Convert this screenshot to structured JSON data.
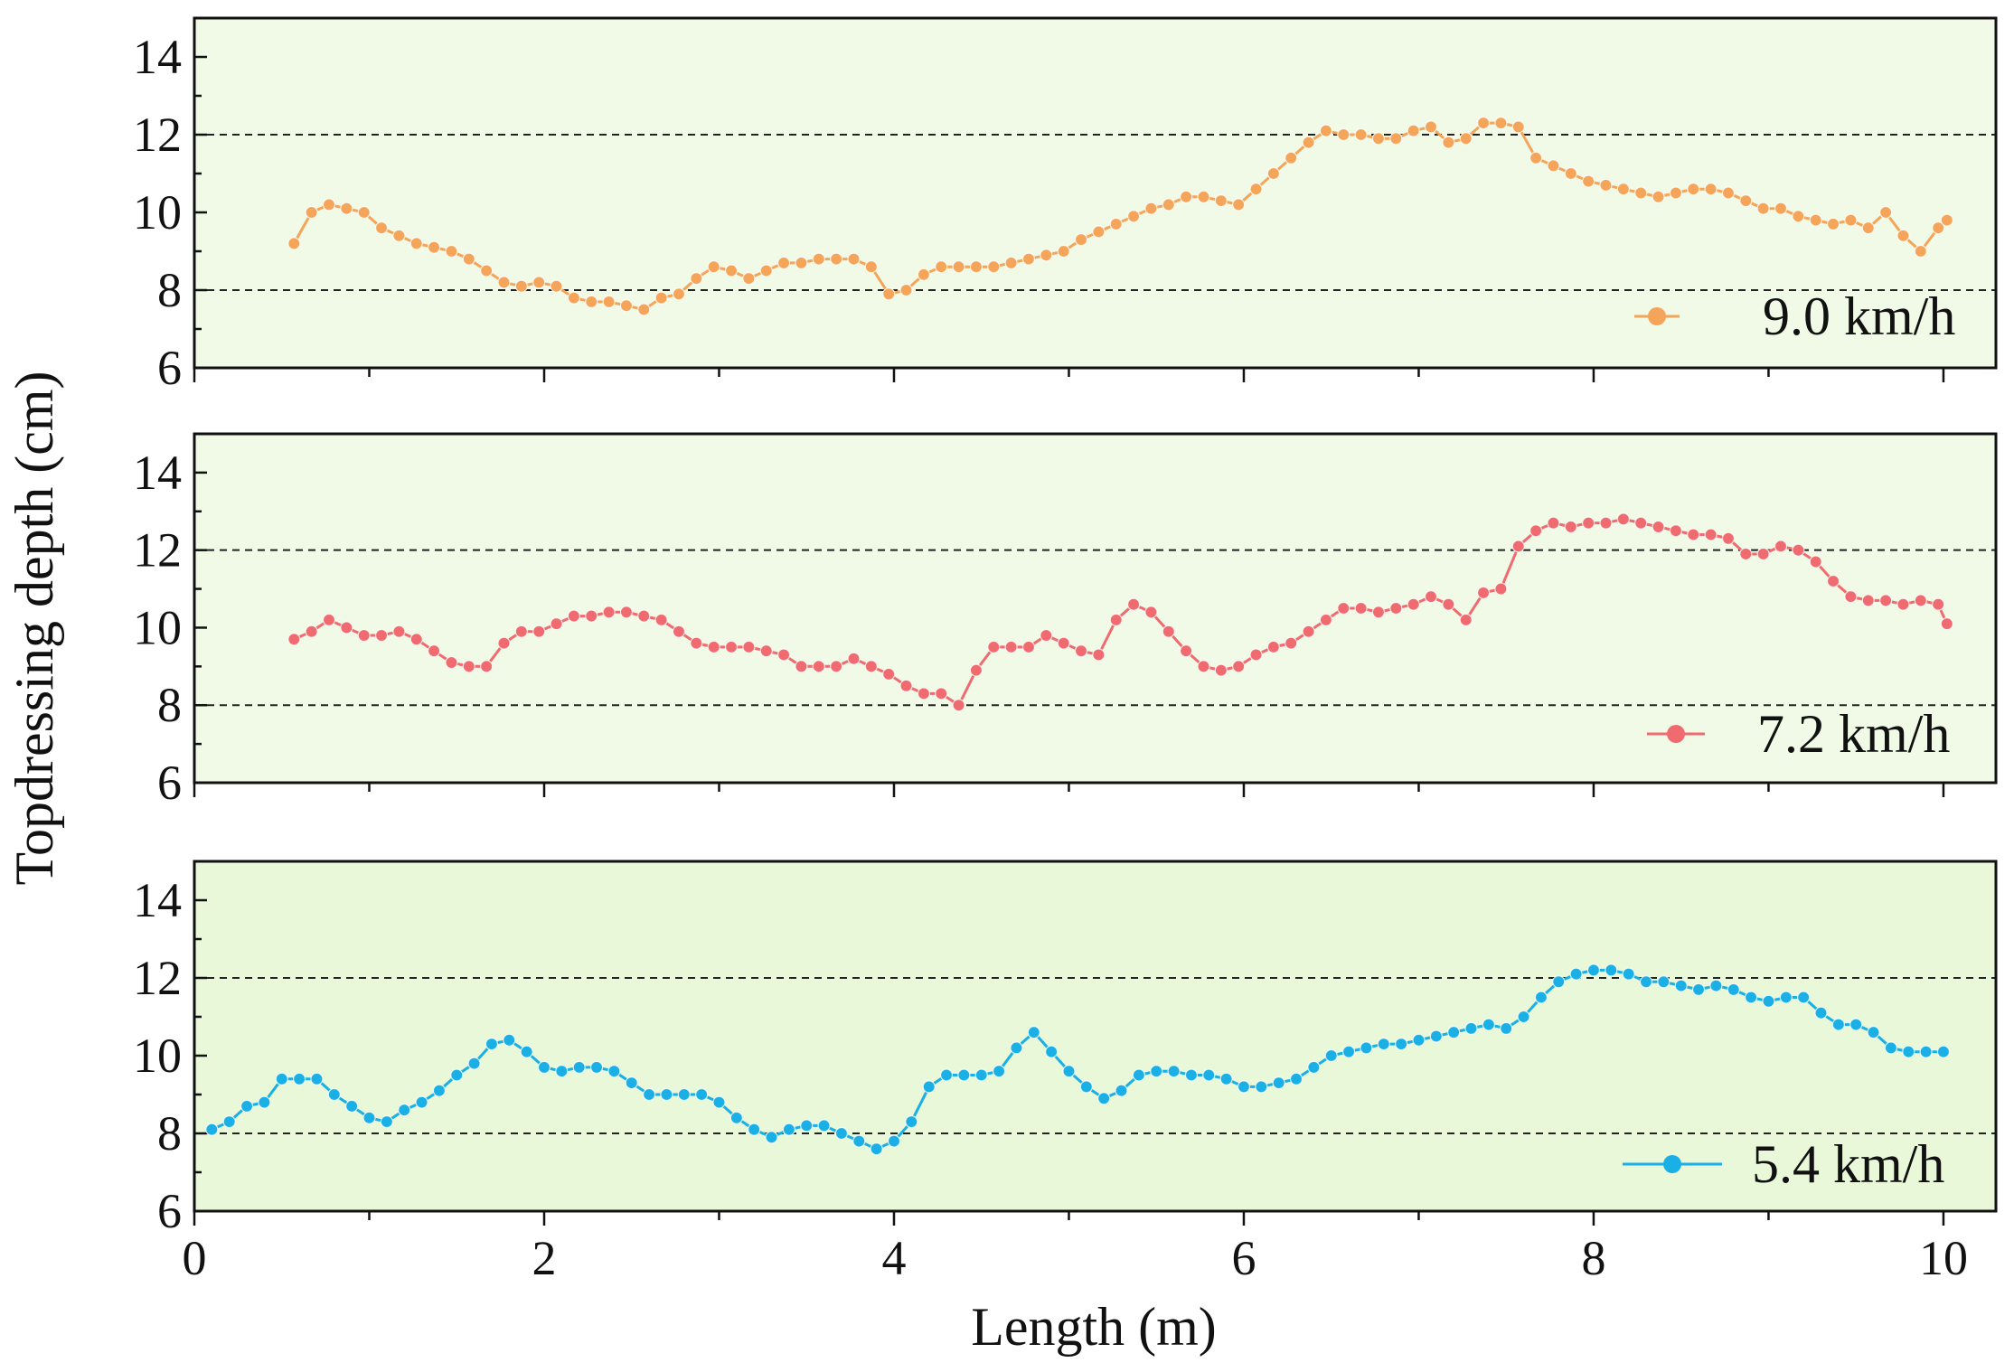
{
  "chart_data": {
    "type": "line",
    "layout": "stacked-panels",
    "xlabel": "Length (m)",
    "ylabel": "Topdressing depth (cm)",
    "xlim": [
      0,
      10.3
    ],
    "x_ticks": [
      0,
      2,
      4,
      6,
      8,
      10
    ],
    "ylim": [
      6,
      15
    ],
    "y_ticks": [
      6,
      8,
      10,
      12,
      14
    ],
    "reference_lines": [
      8,
      12
    ],
    "grid": false,
    "legend_position": "bottom-right",
    "panels": [
      {
        "series": {
          "name": "9.0 km/h",
          "color": "#f5a55a",
          "marker": "circle",
          "x": [
            0.57,
            0.67,
            0.77,
            0.87,
            0.97,
            1.07,
            1.17,
            1.27,
            1.37,
            1.47,
            1.57,
            1.67,
            1.77,
            1.87,
            1.97,
            2.07,
            2.17,
            2.27,
            2.37,
            2.47,
            2.57,
            2.67,
            2.77,
            2.87,
            2.97,
            3.07,
            3.17,
            3.27,
            3.37,
            3.47,
            3.57,
            3.67,
            3.77,
            3.87,
            3.97,
            4.07,
            4.17,
            4.27,
            4.37,
            4.47,
            4.57,
            4.67,
            4.77,
            4.87,
            4.97,
            5.07,
            5.17,
            5.27,
            5.37,
            5.47,
            5.57,
            5.67,
            5.77,
            5.87,
            5.97,
            6.07,
            6.17,
            6.27,
            6.37,
            6.47,
            6.57,
            6.67,
            6.77,
            6.87,
            6.97,
            7.07,
            7.17,
            7.27,
            7.37,
            7.47,
            7.57,
            7.67,
            7.77,
            7.87,
            7.97,
            8.07,
            8.17,
            8.27,
            8.37,
            8.47,
            8.57,
            8.67,
            8.77,
            8.87,
            8.97,
            9.07,
            9.17,
            9.27,
            9.37,
            9.47,
            9.57,
            9.67,
            9.77,
            9.87,
            9.97,
            10.02
          ],
          "y": [
            9.2,
            10.0,
            10.2,
            10.1,
            10.0,
            9.6,
            9.4,
            9.2,
            9.1,
            9.0,
            8.8,
            8.5,
            8.2,
            8.1,
            8.2,
            8.1,
            7.8,
            7.7,
            7.7,
            7.6,
            7.5,
            7.8,
            7.9,
            8.3,
            8.6,
            8.5,
            8.3,
            8.5,
            8.7,
            8.7,
            8.8,
            8.8,
            8.8,
            8.6,
            7.9,
            8.0,
            8.4,
            8.6,
            8.6,
            8.6,
            8.6,
            8.7,
            8.8,
            8.9,
            9.0,
            9.3,
            9.5,
            9.7,
            9.9,
            10.1,
            10.2,
            10.4,
            10.4,
            10.3,
            10.2,
            10.6,
            11.0,
            11.4,
            11.8,
            12.1,
            12.0,
            12.0,
            11.9,
            11.9,
            12.1,
            12.2,
            11.8,
            11.9,
            12.3,
            12.3,
            12.2,
            11.4,
            11.2,
            11.0,
            10.8,
            10.7,
            10.6,
            10.5,
            10.4,
            10.5,
            10.6,
            10.6,
            10.5,
            10.3,
            10.1,
            10.1,
            9.9,
            9.8,
            9.7,
            9.8,
            9.6,
            10.0,
            9.4,
            9.0,
            9.6,
            9.8
          ]
        }
      },
      {
        "series": {
          "name": "7.2 km/h",
          "color": "#f06b6f",
          "marker": "circle",
          "x": [
            0.57,
            0.67,
            0.77,
            0.87,
            0.97,
            1.07,
            1.17,
            1.27,
            1.37,
            1.47,
            1.57,
            1.67,
            1.77,
            1.87,
            1.97,
            2.07,
            2.17,
            2.27,
            2.37,
            2.47,
            2.57,
            2.67,
            2.77,
            2.87,
            2.97,
            3.07,
            3.17,
            3.27,
            3.37,
            3.47,
            3.57,
            3.67,
            3.77,
            3.87,
            3.97,
            4.07,
            4.17,
            4.27,
            4.37,
            4.47,
            4.57,
            4.67,
            4.77,
            4.87,
            4.97,
            5.07,
            5.17,
            5.27,
            5.37,
            5.47,
            5.57,
            5.67,
            5.77,
            5.87,
            5.97,
            6.07,
            6.17,
            6.27,
            6.37,
            6.47,
            6.57,
            6.67,
            6.77,
            6.87,
            6.97,
            7.07,
            7.17,
            7.27,
            7.37,
            7.47,
            7.57,
            7.67,
            7.77,
            7.87,
            7.97,
            8.07,
            8.17,
            8.27,
            8.37,
            8.47,
            8.57,
            8.67,
            8.77,
            8.87,
            8.97,
            9.07,
            9.17,
            9.27,
            9.37,
            9.47,
            9.57,
            9.67,
            9.77,
            9.87,
            9.97,
            10.02
          ],
          "y": [
            9.7,
            9.9,
            10.2,
            10.0,
            9.8,
            9.8,
            9.9,
            9.7,
            9.4,
            9.1,
            9.0,
            9.0,
            9.6,
            9.9,
            9.9,
            10.1,
            10.3,
            10.3,
            10.4,
            10.4,
            10.3,
            10.2,
            9.9,
            9.6,
            9.5,
            9.5,
            9.5,
            9.4,
            9.3,
            9.0,
            9.0,
            9.0,
            9.2,
            9.0,
            8.8,
            8.5,
            8.3,
            8.3,
            8.0,
            8.9,
            9.5,
            9.5,
            9.5,
            9.8,
            9.6,
            9.4,
            9.3,
            10.2,
            10.6,
            10.4,
            9.9,
            9.4,
            9.0,
            8.9,
            9.0,
            9.3,
            9.5,
            9.6,
            9.9,
            10.2,
            10.5,
            10.5,
            10.4,
            10.5,
            10.6,
            10.8,
            10.6,
            10.2,
            10.9,
            11.0,
            12.1,
            12.5,
            12.7,
            12.6,
            12.7,
            12.7,
            12.8,
            12.7,
            12.6,
            12.5,
            12.4,
            12.4,
            12.3,
            11.9,
            11.9,
            12.1,
            12.0,
            11.7,
            11.2,
            10.8,
            10.7,
            10.7,
            10.6,
            10.7,
            10.6,
            10.1
          ]
        }
      },
      {
        "series": {
          "name": "5.4 km/h",
          "color": "#1ab0e6",
          "marker": "circle",
          "x": [
            0.1,
            0.2,
            0.3,
            0.4,
            0.5,
            0.6,
            0.7,
            0.8,
            0.9,
            1.0,
            1.1,
            1.2,
            1.3,
            1.4,
            1.5,
            1.6,
            1.7,
            1.8,
            1.9,
            2.0,
            2.1,
            2.2,
            2.3,
            2.4,
            2.5,
            2.6,
            2.7,
            2.8,
            2.9,
            3.0,
            3.1,
            3.2,
            3.3,
            3.4,
            3.5,
            3.6,
            3.7,
            3.8,
            3.9,
            4.0,
            4.1,
            4.2,
            4.3,
            4.4,
            4.5,
            4.6,
            4.7,
            4.8,
            4.9,
            5.0,
            5.1,
            5.2,
            5.3,
            5.4,
            5.5,
            5.6,
            5.7,
            5.8,
            5.9,
            6.0,
            6.1,
            6.2,
            6.3,
            6.4,
            6.5,
            6.6,
            6.7,
            6.8,
            6.9,
            7.0,
            7.1,
            7.2,
            7.3,
            7.4,
            7.5,
            7.6,
            7.7,
            7.8,
            7.9,
            8.0,
            8.1,
            8.2,
            8.3,
            8.4,
            8.5,
            8.6,
            8.7,
            8.8,
            8.9,
            9.0,
            9.1,
            9.2,
            9.3,
            9.4,
            9.5,
            9.6,
            9.7,
            9.8,
            9.9,
            10.0
          ],
          "y": [
            8.1,
            8.3,
            8.7,
            8.8,
            9.4,
            9.4,
            9.4,
            9.0,
            8.7,
            8.4,
            8.3,
            8.6,
            8.8,
            9.1,
            9.5,
            9.8,
            10.3,
            10.4,
            10.1,
            9.7,
            9.6,
            9.7,
            9.7,
            9.6,
            9.3,
            9.0,
            9.0,
            9.0,
            9.0,
            8.8,
            8.4,
            8.1,
            7.9,
            8.1,
            8.2,
            8.2,
            8.0,
            7.8,
            7.6,
            7.8,
            8.3,
            9.2,
            9.5,
            9.5,
            9.5,
            9.6,
            10.2,
            10.6,
            10.1,
            9.6,
            9.2,
            8.9,
            9.1,
            9.5,
            9.6,
            9.6,
            9.5,
            9.5,
            9.4,
            9.2,
            9.2,
            9.3,
            9.4,
            9.7,
            10.0,
            10.1,
            10.2,
            10.3,
            10.3,
            10.4,
            10.5,
            10.6,
            10.7,
            10.8,
            10.7,
            11.0,
            11.5,
            11.9,
            12.1,
            12.2,
            12.2,
            12.1,
            11.9,
            11.9,
            11.8,
            11.7,
            11.8,
            11.7,
            11.5,
            11.4,
            11.5,
            11.5,
            11.1,
            10.8,
            10.8,
            10.6,
            10.2,
            10.1,
            10.1,
            10.1
          ]
        }
      }
    ]
  }
}
